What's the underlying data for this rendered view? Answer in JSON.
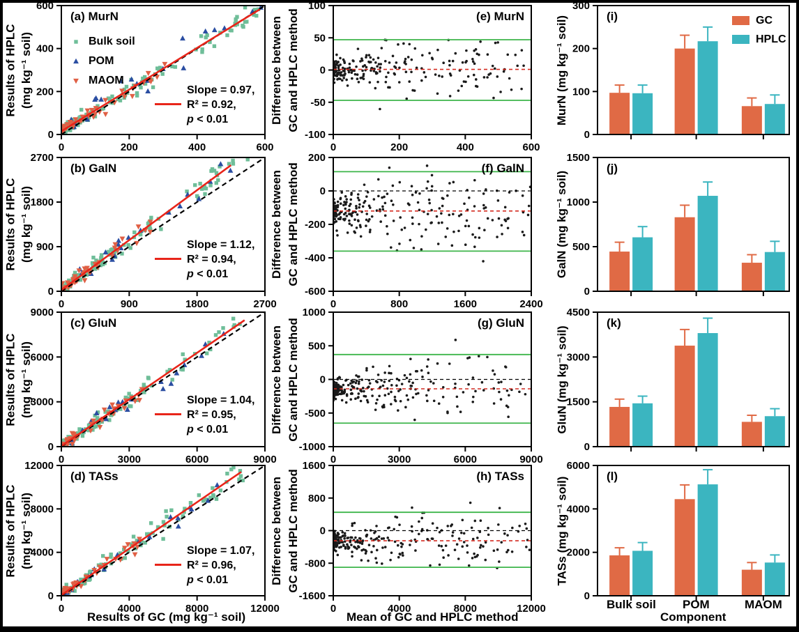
{
  "figure": {
    "colors": {
      "gc": "#E06A45",
      "hplc": "#3BB5C0",
      "bulk": "#6FBE99",
      "pom": "#2B4EA2",
      "maom": "#E06045",
      "fit": "#E8251A",
      "identity": "#000000",
      "limit_green": "#3DB54A",
      "bias_red": "#D42B20",
      "dot": "#1A1A1A"
    }
  },
  "labels": {
    "col1_ylabel1": "Results of HPLC",
    "col1_ylabel2": "(mg kg⁻¹ soil)",
    "col2_ylabel1": "Difference between",
    "col2_ylabel2": "GC and HPLC method",
    "col1_xtitle": "Results of GC (mg kg⁻¹ soil)",
    "col2_xtitle": "Mean of GC and HPLC method",
    "col3_xtitle": "Component"
  },
  "chart_data": {
    "a": {
      "type": "scatter",
      "label": "(a) MurN",
      "xlim": [
        0,
        600
      ],
      "ylim": [
        0,
        600
      ],
      "xticks": [
        0,
        200,
        400,
        600
      ],
      "yticks": [
        0,
        200,
        400,
        600
      ],
      "slope": 0.97,
      "intercept": 15,
      "fit_xend": 585,
      "seed": 11,
      "annot": {
        "slope": "Slope = 0.97,",
        "r2": "R² = 0.92,",
        "p": "p < 0.01"
      },
      "series": [
        {
          "name": "Bulk soil",
          "marker": "square",
          "color": "#6FBE99",
          "n": 150,
          "pow": 2.8,
          "spread": 0.97,
          "noise": 0.045
        },
        {
          "name": "POM",
          "marker": "up",
          "color": "#2B4EA2",
          "n": 22,
          "pow": 1.6,
          "spread": 1.0,
          "noise": 0.07
        },
        {
          "name": "MAOM",
          "marker": "down",
          "color": "#E06045",
          "n": 45,
          "pow": 2.4,
          "spread": 0.55,
          "noise": 0.05
        }
      ]
    },
    "b": {
      "type": "scatter",
      "label": "(b) GalN",
      "xlim": [
        0,
        2700
      ],
      "ylim": [
        0,
        2700
      ],
      "xticks": [
        0,
        900,
        1800,
        2700
      ],
      "yticks": [
        0,
        900,
        1800,
        2700
      ],
      "slope": 1.12,
      "intercept": 25,
      "fit_xend": 2250,
      "seed": 12,
      "annot": {
        "slope": "Slope = 1.12,",
        "r2": "R² = 0.94,",
        "p": "p < 0.01"
      },
      "series": [
        {
          "name": "Bulk soil",
          "marker": "square",
          "color": "#6FBE99",
          "n": 150,
          "pow": 3.0,
          "spread": 0.92,
          "noise": 0.05
        },
        {
          "name": "POM",
          "marker": "up",
          "color": "#2B4EA2",
          "n": 20,
          "pow": 1.6,
          "spread": 0.85,
          "noise": 0.06
        },
        {
          "name": "MAOM",
          "marker": "down",
          "color": "#E06045",
          "n": 45,
          "pow": 2.4,
          "spread": 0.55,
          "noise": 0.05
        }
      ]
    },
    "c": {
      "type": "scatter",
      "label": "(c) GluN",
      "xlim": [
        0,
        9000
      ],
      "ylim": [
        0,
        9000
      ],
      "xticks": [
        0,
        3000,
        6000,
        9000
      ],
      "yticks": [
        0,
        3000,
        6000,
        9000
      ],
      "slope": 1.04,
      "intercept": 40,
      "fit_xend": 8100,
      "seed": 13,
      "annot": {
        "slope": "Slope = 1.04,",
        "r2": "R² = 0.95,",
        "p": "p < 0.01"
      },
      "series": [
        {
          "name": "Bulk soil",
          "marker": "square",
          "color": "#6FBE99",
          "n": 150,
          "pow": 3.2,
          "spread": 0.9,
          "noise": 0.045
        },
        {
          "name": "POM",
          "marker": "up",
          "color": "#2B4EA2",
          "n": 22,
          "pow": 1.6,
          "spread": 0.82,
          "noise": 0.05
        },
        {
          "name": "MAOM",
          "marker": "down",
          "color": "#E06045",
          "n": 45,
          "pow": 2.4,
          "spread": 0.4,
          "noise": 0.04
        }
      ]
    },
    "d": {
      "type": "scatter",
      "label": "(d) TASs",
      "xlim": [
        0,
        12000
      ],
      "ylim": [
        0,
        12000
      ],
      "xticks": [
        0,
        4000,
        8000,
        12000
      ],
      "yticks": [
        0,
        4000,
        8000,
        12000
      ],
      "slope": 1.07,
      "intercept": 60,
      "fit_xend": 10600,
      "seed": 14,
      "annot": {
        "slope": "Slope = 1.07,",
        "r2": "R² = 0.96,",
        "p": "p < 0.01"
      },
      "series": [
        {
          "name": "Bulk soil",
          "marker": "square",
          "color": "#6FBE99",
          "n": 150,
          "pow": 3.2,
          "spread": 0.9,
          "noise": 0.045
        },
        {
          "name": "POM",
          "marker": "up",
          "color": "#2B4EA2",
          "n": 22,
          "pow": 1.6,
          "spread": 0.85,
          "noise": 0.05
        },
        {
          "name": "MAOM",
          "marker": "down",
          "color": "#E06045",
          "n": 45,
          "pow": 2.4,
          "spread": 0.42,
          "noise": 0.04
        }
      ]
    },
    "e": {
      "type": "bland-altman",
      "label": "(e) MurN",
      "xlim": [
        0,
        600
      ],
      "ylim": [
        -100,
        100
      ],
      "xticks": [
        0,
        200,
        400,
        600
      ],
      "yticks": [
        -100,
        -50,
        0,
        50,
        100
      ],
      "upper_limit": 47,
      "lower_limit": -47,
      "bias": 1,
      "zero_line": false,
      "n": 255,
      "sd": 24,
      "pow": 2.6,
      "seed": 21
    },
    "f": {
      "type": "bland-altman",
      "label": "(f) GalN",
      "xlim": [
        0,
        2400
      ],
      "ylim": [
        -600,
        200
      ],
      "xticks": [
        0,
        800,
        1600,
        2400
      ],
      "yticks": [
        -600,
        -400,
        -200,
        0,
        200
      ],
      "upper_limit": 115,
      "lower_limit": -360,
      "bias": -120,
      "zero_line": true,
      "n": 265,
      "sd": 120,
      "pow": 2.6,
      "seed": 22
    },
    "g": {
      "type": "bland-altman",
      "label": "(g) GluN",
      "xlim": [
        0,
        9000
      ],
      "ylim": [
        -1000,
        1000
      ],
      "xticks": [
        0,
        3000,
        6000,
        9000
      ],
      "yticks": [
        -1000,
        -500,
        0,
        500,
        1000
      ],
      "upper_limit": 370,
      "lower_limit": -650,
      "bias": -140,
      "zero_line": true,
      "n": 265,
      "sd": 230,
      "pow": 2.8,
      "seed": 23
    },
    "h": {
      "type": "bland-altman",
      "label": "(h) TASs",
      "xlim": [
        0,
        12000
      ],
      "ylim": [
        -1600,
        1600
      ],
      "xticks": [
        0,
        4000,
        8000,
        12000
      ],
      "yticks": [
        -1600,
        -800,
        0,
        800,
        1600
      ],
      "upper_limit": 450,
      "lower_limit": -900,
      "bias": -250,
      "zero_line": true,
      "n": 270,
      "sd": 330,
      "pow": 2.8,
      "seed": 24
    },
    "i": {
      "type": "bar",
      "label": "(i)",
      "ylabel": "MurN (mg kg⁻¹ soil)",
      "ylim": [
        0,
        300
      ],
      "yticks": [
        0,
        100,
        200,
        300
      ],
      "categories": [
        "Bulk soil",
        "POM",
        "MAOM"
      ],
      "series": [
        {
          "name": "GC",
          "color": "#E06A45",
          "values": [
            97,
            200,
            66
          ],
          "errors": [
            18,
            31,
            19
          ]
        },
        {
          "name": "HPLC",
          "color": "#3BB5C0",
          "values": [
            96,
            217,
            71
          ],
          "errors": [
            19,
            33,
            21
          ]
        }
      ]
    },
    "j": {
      "type": "bar",
      "label": "(j)",
      "ylabel": "GalN (mg kg⁻¹ soil)",
      "ylim": [
        0,
        1500
      ],
      "yticks": [
        0,
        500,
        1000,
        1500
      ],
      "categories": [
        "Bulk soil",
        "POM",
        "MAOM"
      ],
      "series": [
        {
          "name": "GC",
          "color": "#E06A45",
          "values": [
            445,
            830,
            320
          ],
          "errors": [
            105,
            135,
            90
          ]
        },
        {
          "name": "HPLC",
          "color": "#3BB5C0",
          "values": [
            605,
            1070,
            440
          ],
          "errors": [
            120,
            155,
            120
          ]
        }
      ]
    },
    "k": {
      "type": "bar",
      "label": "(k)",
      "ylabel": "GluN (mg kg⁻¹ soil)",
      "ylim": [
        0,
        4500
      ],
      "yticks": [
        0,
        1500,
        3000,
        4500
      ],
      "categories": [
        "Bulk soil",
        "POM",
        "MAOM"
      ],
      "series": [
        {
          "name": "GC",
          "color": "#E06A45",
          "values": [
            1330,
            3380,
            830
          ],
          "errors": [
            260,
            540,
            220
          ]
        },
        {
          "name": "HPLC",
          "color": "#3BB5C0",
          "values": [
            1450,
            3800,
            1020
          ],
          "errors": [
            240,
            500,
            250
          ]
        }
      ]
    },
    "l": {
      "type": "bar",
      "label": "(l)",
      "ylabel": "TASs (mg kg⁻¹ soil)",
      "ylim": [
        0,
        6000
      ],
      "yticks": [
        0,
        2000,
        4000,
        6000
      ],
      "categories": [
        "Bulk soil",
        "POM",
        "MAOM"
      ],
      "series": [
        {
          "name": "GC",
          "color": "#E06A45",
          "values": [
            1860,
            4450,
            1200
          ],
          "errors": [
            350,
            655,
            330
          ]
        },
        {
          "name": "HPLC",
          "color": "#3BB5C0",
          "values": [
            2070,
            5130,
            1530
          ],
          "errors": [
            380,
            675,
            350
          ]
        }
      ]
    }
  }
}
